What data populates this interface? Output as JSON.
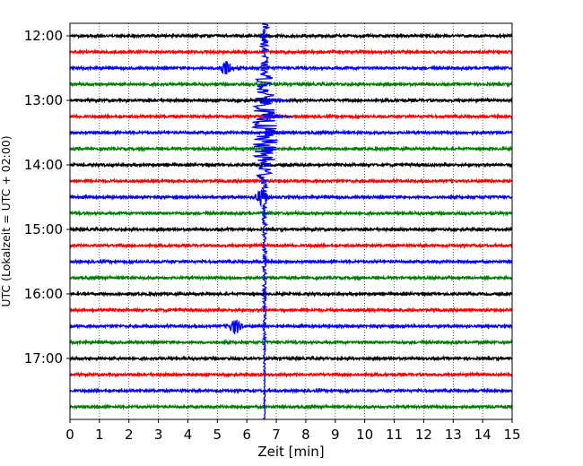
{
  "chart_data": {
    "type": "line",
    "title": "",
    "xlabel": "Zeit  [min]",
    "ylabel": "UTC (Lokalzeit = UTC + 02:00)",
    "xlim": [
      0,
      15
    ],
    "x_ticks": [
      "0",
      "1",
      "2",
      "3",
      "4",
      "5",
      "6",
      "7",
      "8",
      "9",
      "10",
      "11",
      "12",
      "13",
      "14",
      "15"
    ],
    "y_ticks": [
      "12:00",
      "13:00",
      "14:00",
      "15:00",
      "16:00",
      "17:00"
    ],
    "grid": "vertical-dotted",
    "trace_interval_min": 15,
    "trace_colors": [
      "#000000",
      "#ff0000",
      "#0000ff",
      "#008000"
    ],
    "series": [
      {
        "start": "12:00",
        "color": "#000000"
      },
      {
        "start": "12:15",
        "color": "#ff0000"
      },
      {
        "start": "12:30",
        "color": "#0000ff"
      },
      {
        "start": "12:45",
        "color": "#008000"
      },
      {
        "start": "13:00",
        "color": "#000000"
      },
      {
        "start": "13:15",
        "color": "#ff0000"
      },
      {
        "start": "13:30",
        "color": "#0000ff"
      },
      {
        "start": "13:45",
        "color": "#008000"
      },
      {
        "start": "14:00",
        "color": "#000000"
      },
      {
        "start": "14:15",
        "color": "#ff0000"
      },
      {
        "start": "14:30",
        "color": "#0000ff"
      },
      {
        "start": "14:45",
        "color": "#008000"
      },
      {
        "start": "15:00",
        "color": "#000000"
      },
      {
        "start": "15:15",
        "color": "#ff0000"
      },
      {
        "start": "15:30",
        "color": "#0000ff"
      },
      {
        "start": "15:45",
        "color": "#008000"
      },
      {
        "start": "16:00",
        "color": "#000000"
      },
      {
        "start": "16:15",
        "color": "#ff0000"
      },
      {
        "start": "16:30",
        "color": "#0000ff"
      },
      {
        "start": "16:45",
        "color": "#008000"
      },
      {
        "start": "17:00",
        "color": "#000000"
      },
      {
        "start": "17:15",
        "color": "#ff0000"
      },
      {
        "start": "17:30",
        "color": "#0000ff"
      },
      {
        "start": "17:45",
        "color": "#008000"
      }
    ],
    "events": [
      {
        "trace": "12:30",
        "time_min": 5.3,
        "type": "small-burst"
      },
      {
        "trace": "13:00",
        "time_min": 6.6,
        "type": "main-earthquake"
      },
      {
        "trace": "14:30",
        "time_min": 6.5,
        "type": "small-burst"
      },
      {
        "trace": "16:30",
        "time_min": 5.6,
        "type": "small-burst"
      }
    ]
  }
}
